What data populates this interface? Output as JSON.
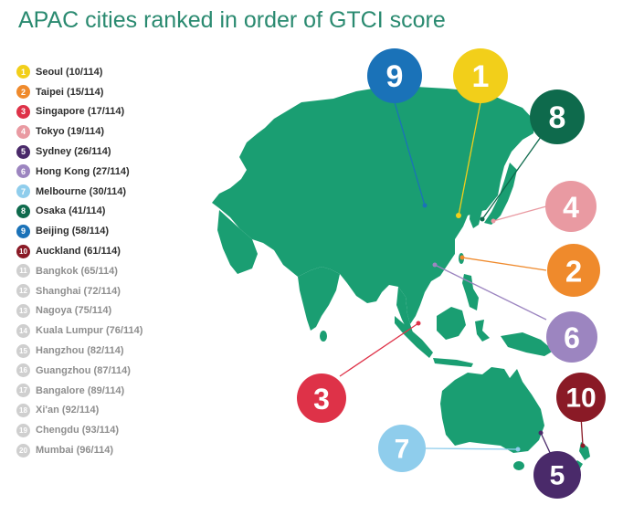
{
  "title": "APAC cities ranked in order of GTCI score",
  "colors": {
    "land": "#1a9e72",
    "muted_dot": "#cfcfcf"
  },
  "legend": [
    {
      "rank": "1",
      "label": "Seoul (10/114)",
      "color": "#f2cf1a"
    },
    {
      "rank": "2",
      "label": "Taipei (15/114)",
      "color": "#ef8a2c"
    },
    {
      "rank": "3",
      "label": "Singapore (17/114)",
      "color": "#de3248"
    },
    {
      "rank": "4",
      "label": "Tokyo (19/114)",
      "color": "#e99aa2"
    },
    {
      "rank": "5",
      "label": "Sydney (26/114)",
      "color": "#4a2a6a"
    },
    {
      "rank": "6",
      "label": "Hong Kong (27/114)",
      "color": "#9c85c0"
    },
    {
      "rank": "7",
      "label": "Melbourne (30/114)",
      "color": "#8fcdec"
    },
    {
      "rank": "8",
      "label": "Osaka (41/114)",
      "color": "#0e6a4c"
    },
    {
      "rank": "9",
      "label": "Beijing (58/114)",
      "color": "#1a72b8"
    },
    {
      "rank": "10",
      "label": "Auckland (61/114)",
      "color": "#8a1a26"
    },
    {
      "rank": "11",
      "label": "Bangkok (65/114)",
      "color": "#cfcfcf"
    },
    {
      "rank": "12",
      "label": "Shanghai (72/114)",
      "color": "#cfcfcf"
    },
    {
      "rank": "13",
      "label": "Nagoya (75/114)",
      "color": "#cfcfcf"
    },
    {
      "rank": "14",
      "label": "Kuala Lumpur (76/114)",
      "color": "#cfcfcf"
    },
    {
      "rank": "15",
      "label": "Hangzhou (82/114)",
      "color": "#cfcfcf"
    },
    {
      "rank": "16",
      "label": "Guangzhou (87/114)",
      "color": "#cfcfcf"
    },
    {
      "rank": "17",
      "label": "Bangalore (89/114)",
      "color": "#cfcfcf"
    },
    {
      "rank": "18",
      "label": "Xi'an (92/114)",
      "color": "#cfcfcf"
    },
    {
      "rank": "19",
      "label": "Chengdu (93/114)",
      "color": "#cfcfcf"
    },
    {
      "rank": "20",
      "label": "Mumbai (96/114)",
      "color": "#cfcfcf"
    }
  ],
  "map_bubbles": [
    {
      "rank": "9",
      "color": "#1a72b8"
    },
    {
      "rank": "1",
      "color": "#f2cf1a"
    },
    {
      "rank": "8",
      "color": "#0e6a4c"
    },
    {
      "rank": "4",
      "color": "#e99aa2"
    },
    {
      "rank": "2",
      "color": "#ef8a2c"
    },
    {
      "rank": "6",
      "color": "#9c85c0"
    },
    {
      "rank": "3",
      "color": "#de3248"
    },
    {
      "rank": "10",
      "color": "#8a1a26"
    },
    {
      "rank": "7",
      "color": "#8fcdec"
    },
    {
      "rank": "5",
      "color": "#4a2a6a"
    }
  ]
}
